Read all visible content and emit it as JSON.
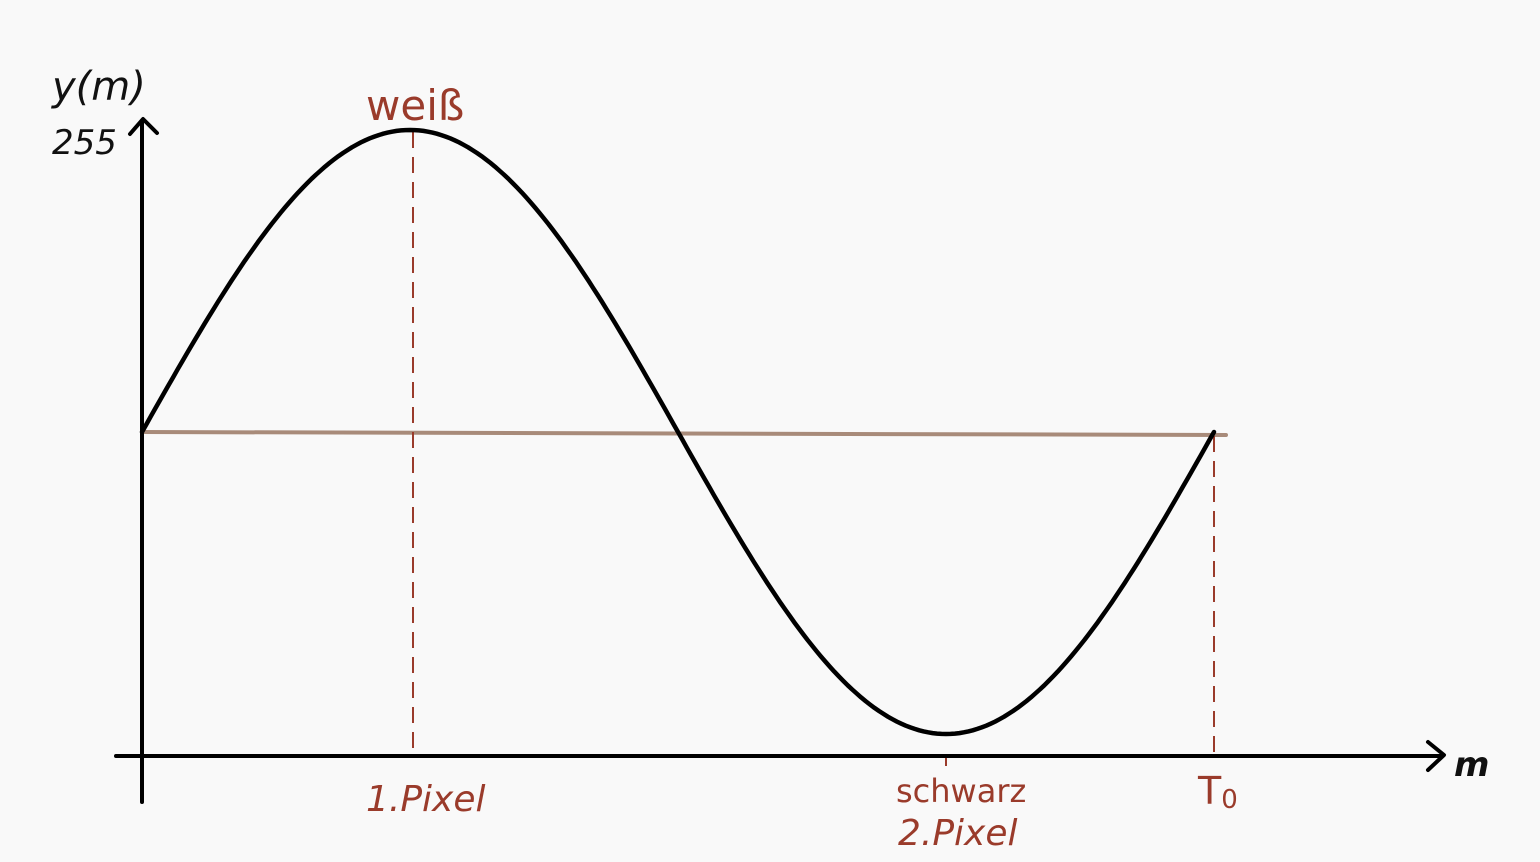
{
  "axes": {
    "y_label": "y(m)",
    "y_max_label": "255",
    "x_label": "m"
  },
  "annotations": {
    "peak_label": "weiß",
    "first_pixel_label": "1.Pixel",
    "trough_label": "schwarz",
    "second_pixel_label": "2.Pixel",
    "period_label": "T",
    "period_subscript": "0"
  },
  "wave": {
    "shape": "sine",
    "periods": 1,
    "y_min": 0,
    "y_max": 255
  },
  "colors": {
    "curve": "#000000",
    "axes": "#000000",
    "annotation": "#9a3b2b",
    "midline": "#a88b7a",
    "background": "#f9f9f9"
  }
}
